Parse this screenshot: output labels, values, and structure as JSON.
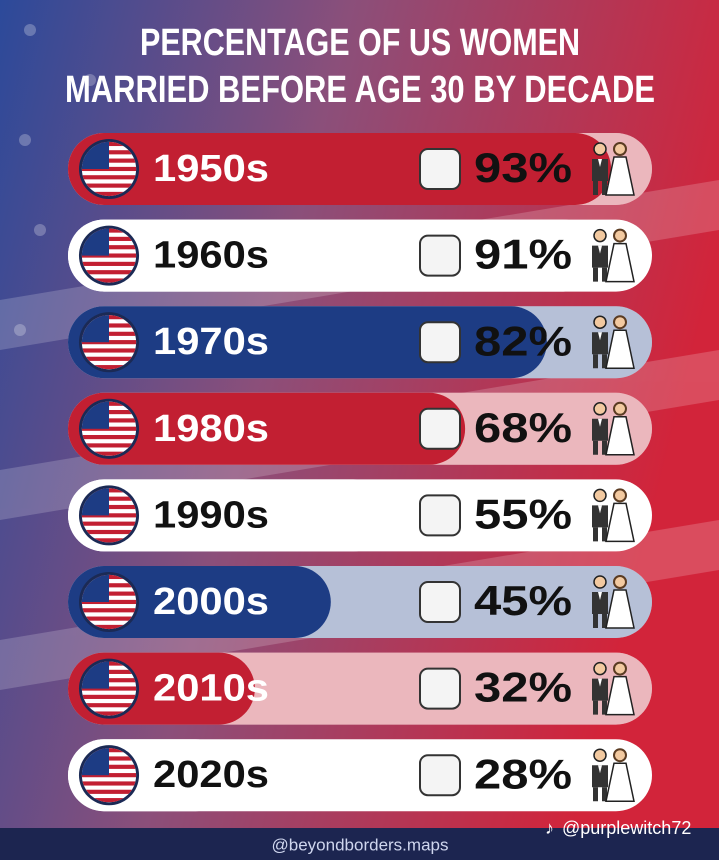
{
  "chart_data": {
    "type": "bar",
    "title": [
      "PERCENTAGE OF US WOMEN",
      "MARRIED BEFORE AGE 30 BY DECADE"
    ],
    "categories": [
      "1950s",
      "1960s",
      "1970s",
      "1980s",
      "1990s",
      "2000s",
      "2010s",
      "2020s"
    ],
    "values": [
      93,
      91,
      82,
      68,
      55,
      45,
      32,
      28
    ],
    "value_labels": [
      "93%",
      "91%",
      "82%",
      "68%",
      "55%",
      "45%",
      "32%",
      "28%"
    ],
    "colors": [
      "#c21f32",
      "#ffffff",
      "#1d3c84",
      "#c21f32",
      "#ffffff",
      "#1d3c84",
      "#c21f32",
      "#ffffff"
    ],
    "xlim": [
      0,
      100
    ],
    "credits": [
      "@beyondborders.maps",
      "@purplewitch72"
    ]
  }
}
